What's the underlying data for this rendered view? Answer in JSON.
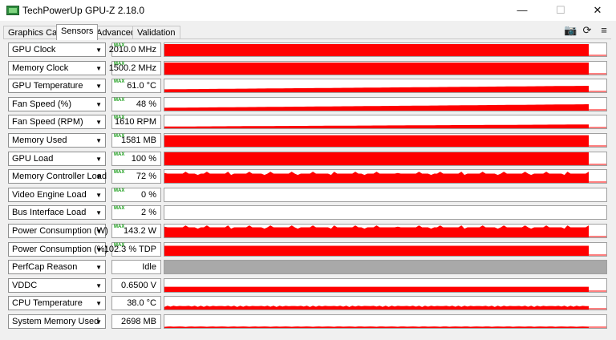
{
  "window": {
    "title": "TechPowerUp GPU-Z 2.18.0",
    "minimize": "—",
    "maximize": "☐",
    "close": "✕"
  },
  "tabs": [
    "Graphics Card",
    "Sensors",
    "Advanced",
    "Validation"
  ],
  "active_tab": "Sensors",
  "toolbar": {
    "camera": "📷",
    "refresh": "⟳",
    "menu": "≡"
  },
  "colors": {
    "graph": "#ff0000",
    "perfcap": "#a9a9a9",
    "max_badge": "#1a9e1a"
  },
  "max_badge_text": "MAX",
  "sensors": [
    {
      "name": "GPU Clock",
      "value": "2010.0 MHz",
      "max": true,
      "level": 0.94,
      "graph": "flat"
    },
    {
      "name": "Memory Clock",
      "value": "1500.2 MHz",
      "max": true,
      "level": 0.94,
      "graph": "flat"
    },
    {
      "name": "GPU Temperature",
      "value": "61.0 °C",
      "max": true,
      "level": 0.5,
      "graph": "rising"
    },
    {
      "name": "Fan Speed (%)",
      "value": "48 %",
      "max": true,
      "level": 0.5,
      "graph": "rising"
    },
    {
      "name": "Fan Speed (RPM)",
      "value": "1610 RPM",
      "max": true,
      "level": 0.3,
      "graph": "rising"
    },
    {
      "name": "Memory Used",
      "value": "1581 MB",
      "max": true,
      "level": 0.9,
      "graph": "flat"
    },
    {
      "name": "GPU Load",
      "value": "100 %",
      "max": true,
      "level": 1.0,
      "graph": "flat"
    },
    {
      "name": "Memory Controller Load",
      "value": "72 %",
      "max": true,
      "level": 0.72,
      "graph": "spiky"
    },
    {
      "name": "Video Engine Load",
      "value": "0 %",
      "max": true,
      "level": 0.0,
      "graph": "none"
    },
    {
      "name": "Bus Interface Load",
      "value": "2 %",
      "max": true,
      "level": 0.02,
      "graph": "none"
    },
    {
      "name": "Power Consumption (W)",
      "value": "143.2 W",
      "max": true,
      "level": 0.78,
      "graph": "spiky"
    },
    {
      "name": "Power Consumption (%)",
      "value": "102.3 % TDP",
      "max": true,
      "level": 0.78,
      "graph": "flat"
    },
    {
      "name": "PerfCap Reason",
      "value": "Idle",
      "max": false,
      "level": 1.0,
      "graph": "gray"
    },
    {
      "name": "VDDC",
      "value": "0.6500 V",
      "max": false,
      "level": 0.4,
      "graph": "flat"
    },
    {
      "name": "CPU Temperature",
      "value": "38.0 °C",
      "max": false,
      "level": 0.25,
      "graph": "noisy"
    },
    {
      "name": "System Memory Used",
      "value": "2698 MB",
      "max": false,
      "level": 0.1,
      "graph": "low"
    }
  ]
}
